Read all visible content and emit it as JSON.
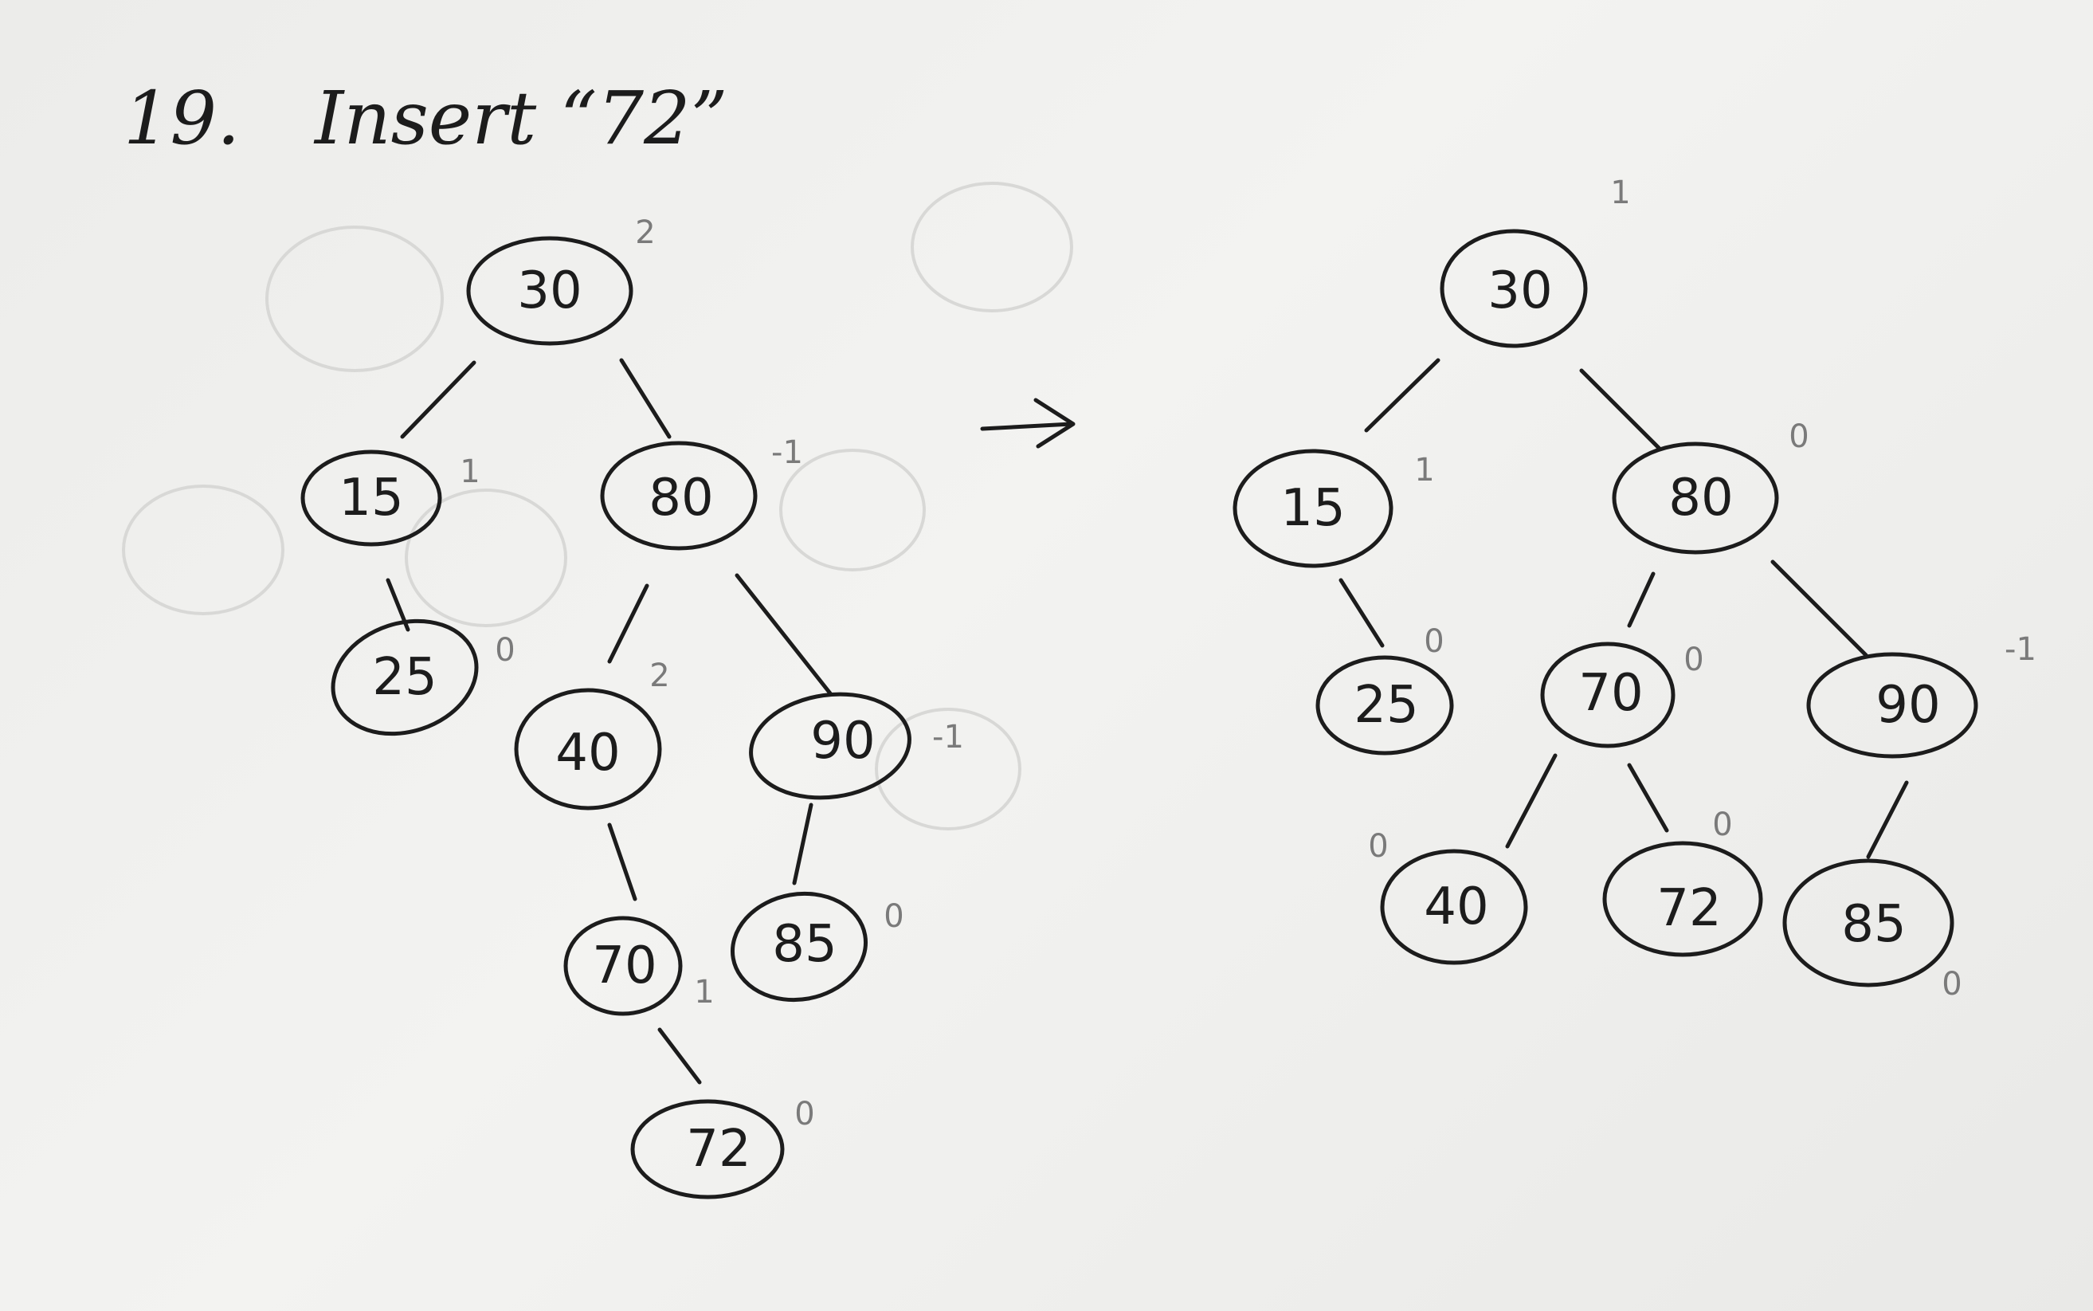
{
  "title": {
    "number": "19.",
    "text": "Insert “72”"
  },
  "arrow": "→",
  "before_tree": {
    "nodes": [
      {
        "value": "30",
        "balance": "2"
      },
      {
        "value": "15",
        "balance": "1"
      },
      {
        "value": "80",
        "balance": "-1"
      },
      {
        "value": "25",
        "balance": "0"
      },
      {
        "value": "40",
        "balance": "2"
      },
      {
        "value": "90",
        "balance": "-1"
      },
      {
        "value": "70",
        "balance": "1"
      },
      {
        "value": "85",
        "balance": "0"
      },
      {
        "value": "72",
        "balance": "0"
      }
    ]
  },
  "after_tree": {
    "nodes": [
      {
        "value": "30",
        "balance": "1"
      },
      {
        "value": "15",
        "balance": "1"
      },
      {
        "value": "80",
        "balance": "0"
      },
      {
        "value": "25",
        "balance": "0"
      },
      {
        "value": "70",
        "balance": "0"
      },
      {
        "value": "90",
        "balance": "-1"
      },
      {
        "value": "40",
        "balance": "0"
      },
      {
        "value": "72",
        "balance": "0"
      },
      {
        "value": "85",
        "balance": "0"
      }
    ]
  }
}
